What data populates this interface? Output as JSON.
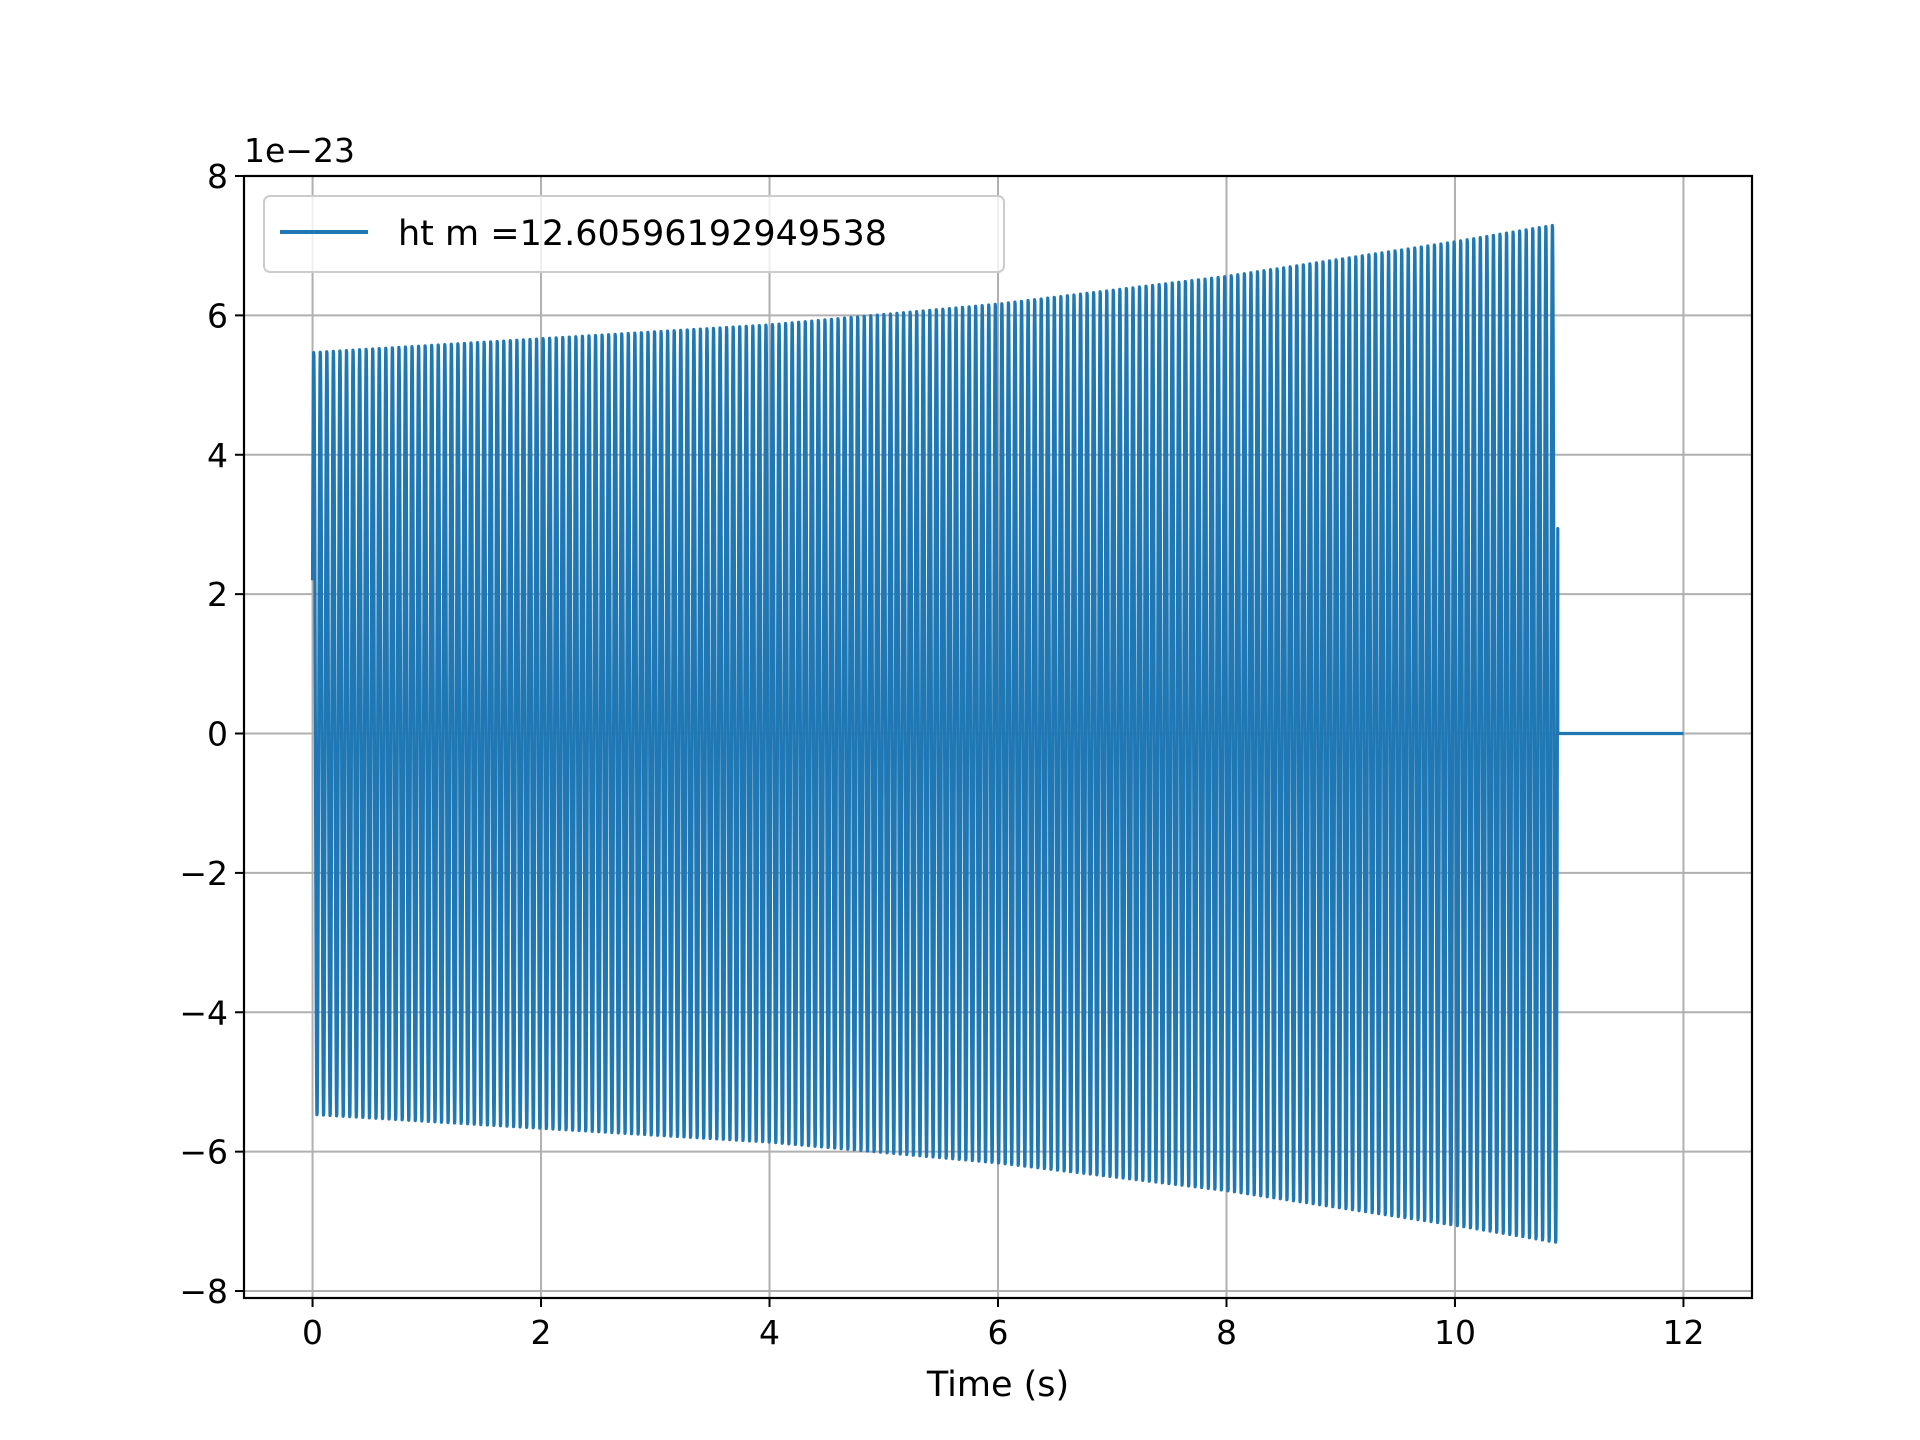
{
  "chart_data": {
    "type": "line",
    "title": "",
    "xlabel": "Time (s)",
    "ylabel": "",
    "y_offset_label": "1e−23",
    "xlim": [
      -0.6,
      12.6
    ],
    "ylim": [
      -8.1,
      8.0
    ],
    "y_scale_factor": 1e-23,
    "grid": true,
    "legend_position": "upper-left",
    "x_ticks": [
      0,
      2,
      4,
      6,
      8,
      10,
      12
    ],
    "x_tick_labels": [
      "0",
      "2",
      "4",
      "6",
      "8",
      "10",
      "12"
    ],
    "y_ticks": [
      -8,
      -6,
      -4,
      -2,
      0,
      2,
      4,
      6,
      8
    ],
    "y_tick_labels": [
      "−8",
      "−6",
      "−4",
      "−2",
      "0",
      "2",
      "4",
      "6",
      "8"
    ],
    "series": [
      {
        "name": "ht m =12.60596192949538",
        "color": "#1f77b4",
        "description_values": {
          "start_time": 0,
          "start_value": 2.2,
          "envelope_times": [
            0,
            2,
            4,
            6,
            8,
            10,
            10.9
          ],
          "envelope_amplitudes": [
            5.5,
            5.7,
            5.9,
            6.2,
            6.6,
            7.1,
            7.35
          ],
          "cycle_count": 190,
          "end_time_oscillation": 10.9,
          "flat_value_after_end": 0,
          "end_time": 12
        }
      }
    ]
  }
}
